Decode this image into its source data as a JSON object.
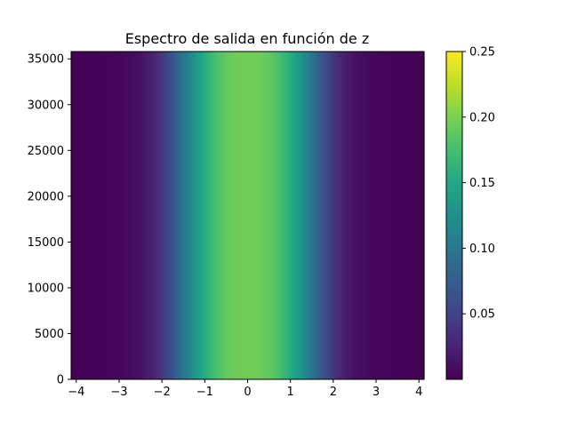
{
  "chart_data": {
    "type": "heatmap",
    "title": "Espectro de salida en función de z",
    "xlabel": "",
    "ylabel": "",
    "xlim": [
      -4.12,
      4.12
    ],
    "ylim": [
      0,
      35800
    ],
    "xticks": [
      -4,
      -3,
      -2,
      -1,
      0,
      1,
      2,
      3,
      4
    ],
    "xtick_labels": [
      "−4",
      "−3",
      "−2",
      "−1",
      "0",
      "1",
      "2",
      "3",
      "4"
    ],
    "yticks": [
      0,
      5000,
      10000,
      15000,
      20000,
      25000,
      30000,
      35000
    ],
    "ytick_labels": [
      "0",
      "5000",
      "10000",
      "15000",
      "20000",
      "25000",
      "30000",
      "35000"
    ],
    "colormap": "viridis",
    "colorbar": {
      "range": [
        0.0,
        0.25
      ],
      "ticks": [
        0.05,
        0.1,
        0.15,
        0.2,
        0.25
      ],
      "tick_labels": [
        "0.05",
        "0.10",
        "0.15",
        "0.20",
        "0.25"
      ]
    },
    "profile": {
      "x": [
        -4.12,
        -3.5,
        -3.0,
        -2.5,
        -2.2,
        -2.0,
        -1.8,
        -1.6,
        -1.4,
        -1.2,
        -1.0,
        -0.8,
        -0.6,
        -0.4,
        -0.2,
        0.0,
        0.2,
        0.4,
        0.6,
        0.8,
        1.0,
        1.2,
        1.4,
        1.6,
        1.8,
        2.0,
        2.2,
        2.5,
        3.0,
        3.5,
        4.12
      ],
      "value": [
        0.001,
        0.002,
        0.004,
        0.012,
        0.025,
        0.04,
        0.06,
        0.085,
        0.11,
        0.135,
        0.155,
        0.172,
        0.185,
        0.192,
        0.195,
        0.196,
        0.195,
        0.192,
        0.185,
        0.172,
        0.155,
        0.135,
        0.11,
        0.085,
        0.06,
        0.04,
        0.025,
        0.012,
        0.004,
        0.002,
        0.001
      ]
    }
  }
}
